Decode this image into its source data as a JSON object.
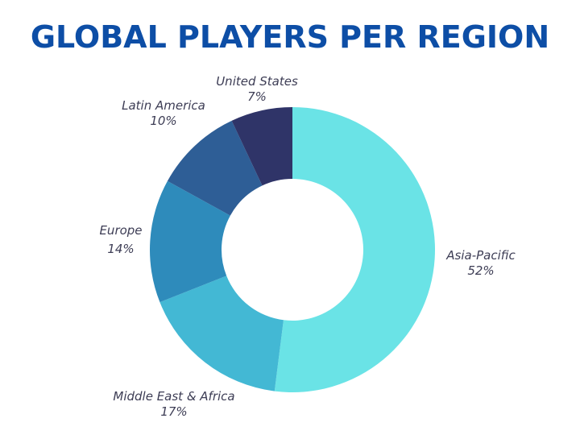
{
  "chart_data": {
    "type": "pie",
    "variant": "donut",
    "title": "GLOBAL PLAYERS PER REGION",
    "categories": [
      "Asia-Pacific",
      "Middle East & Africa",
      "Europe",
      "Latin America",
      "United States"
    ],
    "values": [
      52,
      17,
      14,
      10,
      7
    ],
    "value_labels": [
      "52%",
      "17%",
      "14%",
      "10%",
      "7%"
    ],
    "colors": [
      "#6ae3e6",
      "#43b8d4",
      "#2e8bbb",
      "#2e5e96",
      "#2f3468"
    ],
    "start": "top",
    "direction": "clockwise",
    "legend": "none"
  }
}
